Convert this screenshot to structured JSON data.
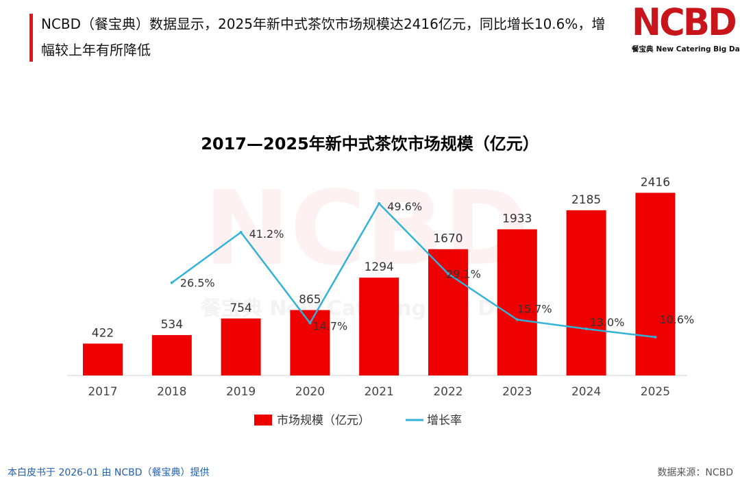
{
  "header": {
    "headline": "NCBD（餐宝典）数据显示，2025年新中式茶饮市场规模达2416亿元，同比增长10.6%，增幅较上年有所降低",
    "accent_color": "#e8141a"
  },
  "logo": {
    "text": "NCBD",
    "subtitle_cn": "餐宝典",
    "subtitle_en": "New Catering Big Data",
    "color": "#c8151b"
  },
  "watermark": {
    "text": "NCBD",
    "subtitle": "餐宝典 New Catering Big Data"
  },
  "chart_data": {
    "type": "bar+line",
    "title": "2017—2025年新中式茶饮市场规模（亿元）",
    "categories": [
      "2017",
      "2018",
      "2019",
      "2020",
      "2021",
      "2022",
      "2023",
      "2024",
      "2025"
    ],
    "series": [
      {
        "name": "市场规模（亿元）",
        "type": "bar",
        "color": "#ee0000",
        "values": [
          422,
          534,
          754,
          865,
          1294,
          1670,
          1933,
          2185,
          2416
        ],
        "labels": [
          "422",
          "534",
          "754",
          "865",
          "1294",
          "1670",
          "1933",
          "2185",
          "2416"
        ]
      },
      {
        "name": "增长率",
        "type": "line",
        "color": "#31b2d6",
        "values": [
          null,
          26.5,
          41.2,
          14.7,
          49.6,
          29.1,
          15.7,
          13.0,
          10.6
        ],
        "labels": [
          null,
          "26.5%",
          "41.2%",
          "14.7%",
          "49.6%",
          "29.1%",
          "15.7%",
          "13.0%",
          "10.6%"
        ]
      }
    ],
    "ylim_bar": [
      0,
      2700
    ],
    "ylim_line": [
      0,
      60
    ],
    "grid": false,
    "legend": "bottom-center"
  },
  "footer": {
    "left": "本白皮书于 2026-01 由 NCBD（餐宝典）提供",
    "right": "数据来源：NCBD"
  }
}
